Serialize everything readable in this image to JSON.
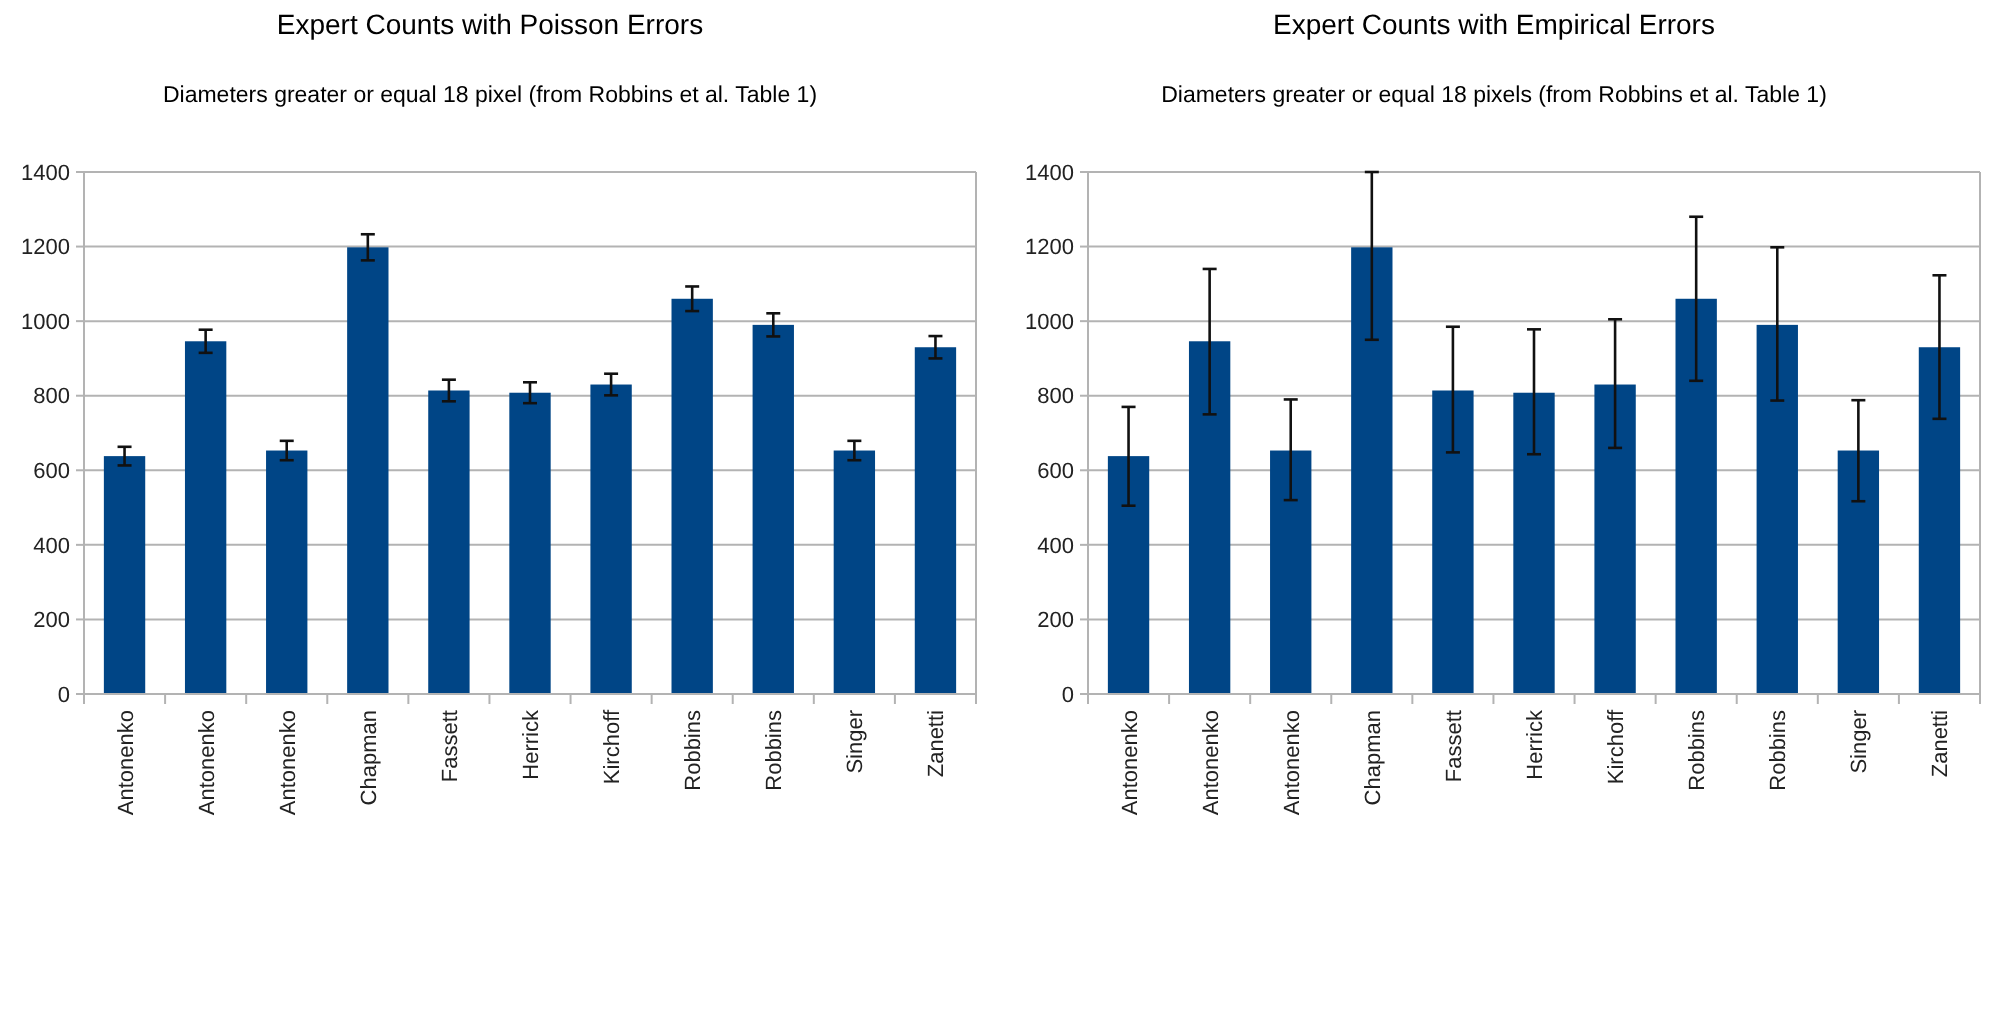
{
  "chart_data": [
    {
      "type": "bar",
      "title": "Expert Counts with Poisson Errors",
      "subtitle": "Diameters greater or equal 18 pixel (from Robbins et al. Table 1)",
      "categories": [
        "Antonenko",
        "Antonenko",
        "Antonenko",
        "Chapman",
        "Fassett",
        "Herrick",
        "Kirchoff",
        "Robbins",
        "Robbins",
        "Singer",
        "Zanetti"
      ],
      "series": [
        {
          "color": "#004586",
          "values": [
            638,
            946,
            653,
            1198,
            814,
            808,
            830,
            1060,
            990,
            653,
            930
          ],
          "errors": [
            25,
            31,
            26,
            35,
            29,
            28,
            29,
            33,
            31,
            26,
            30
          ]
        }
      ],
      "ylim": [
        0,
        1400
      ],
      "yticks": [
        0,
        200,
        400,
        600,
        800,
        1000,
        1200,
        1400
      ],
      "grid": "y"
    },
    {
      "type": "bar",
      "title": "Expert Counts with Empirical Errors",
      "subtitle": "Diameters greater or equal 18 pixels (from Robbins et al. Table 1)",
      "categories": [
        "Antonenko",
        "Antonenko",
        "Antonenko",
        "Chapman",
        "Fassett",
        "Herrick",
        "Kirchoff",
        "Robbins",
        "Robbins",
        "Singer",
        "Zanetti"
      ],
      "series": [
        {
          "color": "#004586",
          "values": [
            638,
            946,
            653,
            1198,
            814,
            808,
            830,
            1060,
            990,
            653,
            930
          ],
          "errors": [
            [
              505,
              770
            ],
            [
              750,
              1140
            ],
            [
              520,
              790
            ],
            [
              950,
              1400
            ],
            [
              648,
              985
            ],
            [
              643,
              978
            ],
            [
              660,
              1005
            ],
            [
              840,
              1280
            ],
            [
              787,
              1198
            ],
            [
              517,
              788
            ],
            [
              738,
              1123
            ]
          ]
        }
      ],
      "ylim": [
        0,
        1400
      ],
      "yticks": [
        0,
        200,
        400,
        600,
        800,
        1000,
        1200,
        1400
      ],
      "grid": "y"
    }
  ]
}
